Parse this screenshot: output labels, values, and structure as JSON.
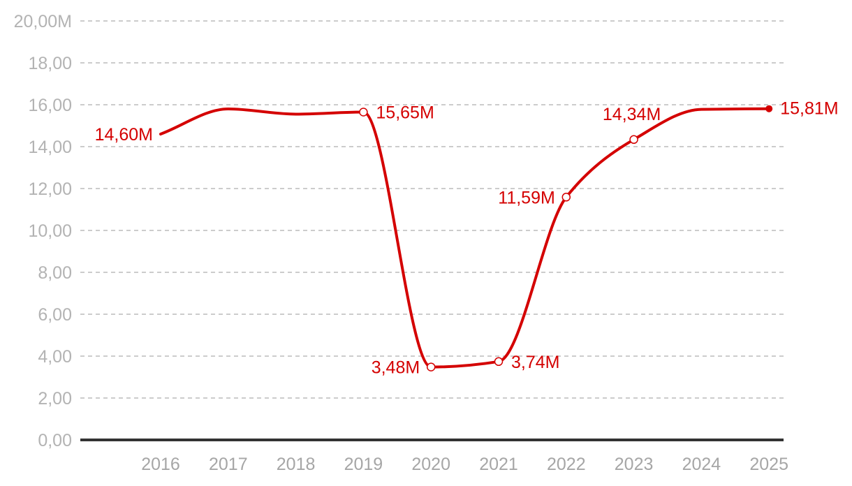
{
  "chart_data": {
    "type": "line",
    "x": [
      "2016",
      "2017",
      "2018",
      "2019",
      "2020",
      "2021",
      "2022",
      "2023",
      "2024",
      "2025"
    ],
    "series": [
      {
        "values": [
          14.6,
          15.8,
          15.55,
          15.65,
          3.48,
          3.74,
          11.59,
          14.34,
          15.78,
          15.81
        ],
        "data_labels": [
          "14,60M",
          null,
          null,
          "15,65M",
          "3,48M",
          "3,74M",
          "11,59M",
          "14,34M",
          null,
          "15,81M"
        ]
      }
    ],
    "y_tick_labels": [
      "0,00",
      "2,00",
      "4,00",
      "6,00",
      "8,00",
      "10,00",
      "12,00",
      "14,00",
      "16,00",
      "18,00",
      "20,00M"
    ],
    "ylim": [
      0,
      20
    ],
    "grid": true,
    "colors": {
      "line": "#d40000",
      "grid": "#cccccc",
      "axis": "#333333"
    }
  }
}
